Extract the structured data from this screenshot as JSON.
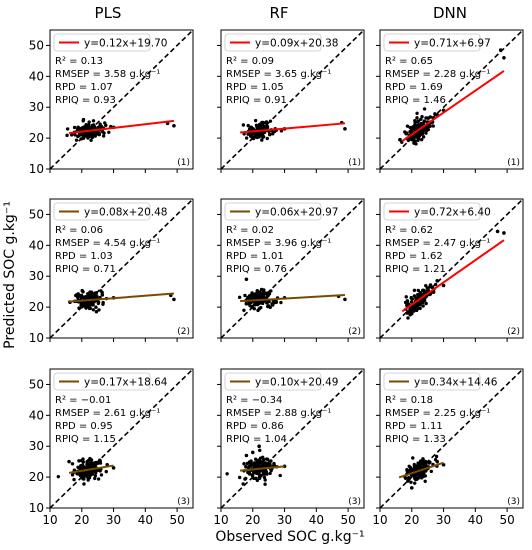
{
  "chart_data": {
    "type": "scatter",
    "x_axis_label": "Observed SOC g.kg⁻¹",
    "y_axis_label": "Predicted SOC g.kg⁻¹",
    "columns": [
      "PLS",
      "RF",
      "DNN"
    ],
    "xlim": [
      10,
      55
    ],
    "ylim": [
      10,
      55
    ],
    "ticks": [
      10,
      20,
      30,
      40,
      50
    ],
    "grid": false,
    "reference_line": "1:1",
    "panels": [
      {
        "row": 1,
        "col": 0,
        "id": "(1)",
        "fit_color": "#ff0000",
        "fit_extent": [
          16,
          49
        ],
        "legend": "y=0.12x+19.70",
        "slope": 0.12,
        "intercept": 19.7,
        "stats": [
          "R² = 0.13",
          "RMSEP = 3.58 g.kg⁻¹",
          "RPD = 1.07",
          "RPIQ = 0.93"
        ],
        "outliers": [
          [
            47,
            24.8
          ],
          [
            49,
            24.0
          ],
          [
            30,
            23.5
          ]
        ],
        "spread": 1.3,
        "seed": 11
      },
      {
        "row": 1,
        "col": 1,
        "id": "(1)",
        "fit_color": "#ff0000",
        "fit_extent": [
          16,
          49
        ],
        "legend": "y=0.09x+20.38",
        "slope": 0.09,
        "intercept": 20.38,
        "stats": [
          "R² = 0.09",
          "RMSEP = 3.65 g.kg⁻¹",
          "RPD = 1.05",
          "RPIQ = 0.91"
        ],
        "outliers": [
          [
            48,
            25.0
          ],
          [
            49,
            23.0
          ],
          [
            30,
            23.0
          ]
        ],
        "spread": 1.3,
        "seed": 12
      },
      {
        "row": 1,
        "col": 2,
        "id": "(1)",
        "fit_color": "#ff0000",
        "fit_extent": [
          17,
          49
        ],
        "legend": "y=0.71x+6.97",
        "slope": 0.71,
        "intercept": 6.97,
        "stats": [
          "R² = 0.65",
          "RMSEP = 2.28 g.kg⁻¹",
          "RPD = 1.69",
          "RPIQ = 1.46"
        ],
        "outliers": [
          [
            49,
            46.0
          ],
          [
            48,
            48.5
          ],
          [
            30,
            29.0
          ],
          [
            28,
            27.5
          ]
        ],
        "spread": 1.6,
        "seed": 13
      },
      {
        "row": 2,
        "col": 0,
        "id": "(2)",
        "fit_color": "#7a4a00",
        "fit_extent": [
          16,
          49
        ],
        "legend": "y=0.08x+20.48",
        "slope": 0.08,
        "intercept": 20.48,
        "stats": [
          "R² = 0.06",
          "RMSEP = 4.54 g.kg⁻¹",
          "RPD = 1.03",
          "RPIQ = 0.71"
        ],
        "outliers": [
          [
            48,
            23.8
          ],
          [
            49,
            22.5
          ],
          [
            30,
            23.0
          ]
        ],
        "spread": 1.4,
        "seed": 21
      },
      {
        "row": 2,
        "col": 1,
        "id": "(2)",
        "fit_color": "#7a4a00",
        "fit_extent": [
          16,
          49
        ],
        "legend": "y=0.06x+20.97",
        "slope": 0.06,
        "intercept": 20.97,
        "stats": [
          "R² = 0.02",
          "RMSEP = 3.96 g.kg⁻¹",
          "RPD = 1.01",
          "RPIQ = 0.76"
        ],
        "outliers": [
          [
            47,
            23.5
          ],
          [
            49,
            22.5
          ],
          [
            18,
            29.0
          ],
          [
            30,
            23.0
          ]
        ],
        "spread": 1.5,
        "seed": 22
      },
      {
        "row": 2,
        "col": 2,
        "id": "(2)",
        "fit_color": "#ff0000",
        "fit_extent": [
          17,
          49
        ],
        "legend": "y=0.72x+6.40",
        "slope": 0.72,
        "intercept": 6.4,
        "stats": [
          "R² = 0.62",
          "RMSEP = 2.47 g.kg⁻¹",
          "RPD = 1.62",
          "RPIQ = 1.21"
        ],
        "outliers": [
          [
            49,
            44.0
          ],
          [
            47,
            44.5
          ],
          [
            30,
            27.0
          ],
          [
            28,
            28.5
          ]
        ],
        "spread": 1.6,
        "seed": 23
      },
      {
        "row": 3,
        "col": 0,
        "id": "(3)",
        "fit_color": "#7a4a00",
        "fit_extent": [
          16,
          30
        ],
        "legend": "y=0.17x+18.64",
        "slope": 0.17,
        "intercept": 18.64,
        "stats": [
          "R² = −0.01",
          "RMSEP = 2.61 g.kg⁻¹",
          "RPD = 0.95",
          "RPIQ = 1.15"
        ],
        "outliers": [
          [
            30,
            23.0
          ],
          [
            28,
            24.0
          ],
          [
            16,
            25.0
          ]
        ],
        "spread": 1.4,
        "seed": 31
      },
      {
        "row": 3,
        "col": 1,
        "id": "(3)",
        "fit_color": "#7a4a00",
        "fit_extent": [
          16,
          30
        ],
        "legend": "y=0.10x+20.49",
        "slope": 0.1,
        "intercept": 20.49,
        "stats": [
          "R² = −0.34",
          "RMSEP = 2.88 g.kg⁻¹",
          "RPD = 0.86",
          "RPIQ = 1.04"
        ],
        "outliers": [
          [
            22,
            30.0
          ],
          [
            20,
            28.0
          ],
          [
            30,
            23.5
          ],
          [
            18,
            27.0
          ]
        ],
        "spread": 1.8,
        "seed": 32
      },
      {
        "row": 3,
        "col": 2,
        "id": "(3)",
        "fit_color": "#7a4a00",
        "fit_extent": [
          16,
          30
        ],
        "legend": "y=0.34x+14.46",
        "slope": 0.34,
        "intercept": 14.46,
        "stats": [
          "R² = 0.18",
          "RMSEP = 2.25 g.kg⁻¹",
          "RPD = 1.11",
          "RPIQ = 1.33"
        ],
        "outliers": [
          [
            30,
            24.0
          ],
          [
            20,
            16.5
          ],
          [
            28,
            25.0
          ]
        ],
        "spread": 1.5,
        "seed": 33
      }
    ]
  }
}
